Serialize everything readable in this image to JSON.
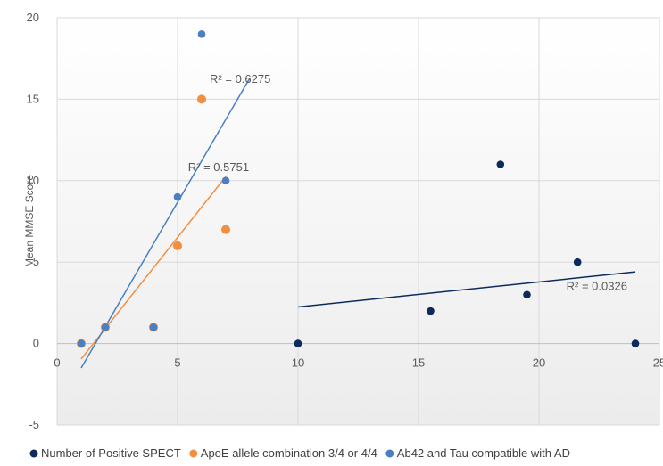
{
  "chart_data": {
    "type": "scatter",
    "title": "",
    "xlabel": "",
    "ylabel": "Mean MMSE Score",
    "xlim": [
      0,
      25
    ],
    "ylim": [
      -5,
      20
    ],
    "x_ticks": [
      "0",
      "5",
      "10",
      "15",
      "20",
      "25"
    ],
    "y_ticks": [
      "-5",
      "0",
      "5",
      "10",
      "15",
      "20"
    ],
    "grid": "horizontal",
    "legend_position": "bottom",
    "series": [
      {
        "name": "Number of Positive SPECT",
        "color": "#0d2a5c",
        "points": [
          [
            10,
            0
          ],
          [
            15.5,
            2
          ],
          [
            18.4,
            11
          ],
          [
            19.5,
            3
          ],
          [
            21.6,
            5
          ],
          [
            24,
            0
          ]
        ],
        "trendline": {
          "x": [
            10,
            24
          ],
          "y": [
            2.25,
            4.4
          ]
        },
        "r2_label": "R² = 0.0326",
        "r2_anchor": [
          22.4,
          3.3
        ]
      },
      {
        "name": "ApoE allele combination 3/4 or 4/4",
        "color": "#f28e3f",
        "points": [
          [
            1,
            0
          ],
          [
            2,
            1
          ],
          [
            4,
            1
          ],
          [
            5,
            6
          ],
          [
            6,
            15
          ],
          [
            7,
            7
          ]
        ],
        "trendline": {
          "x": [
            1,
            7
          ],
          "y": [
            -0.95,
            10.25
          ]
        },
        "r2_label": "R² = 0.5751",
        "r2_anchor": [
          6.7,
          10.6
        ]
      },
      {
        "name": "Ab42 and Tau compatible with AD",
        "color": "#4a7fc1",
        "points": [
          [
            1,
            0
          ],
          [
            2,
            1
          ],
          [
            4,
            1
          ],
          [
            5,
            9
          ],
          [
            6,
            19
          ],
          [
            7,
            10
          ]
        ],
        "trendline": {
          "x": [
            1,
            8
          ],
          "y": [
            -1.5,
            16.3
          ]
        },
        "r2_label": "R² = 0.6275",
        "r2_anchor": [
          7.6,
          16.0
        ]
      }
    ]
  }
}
